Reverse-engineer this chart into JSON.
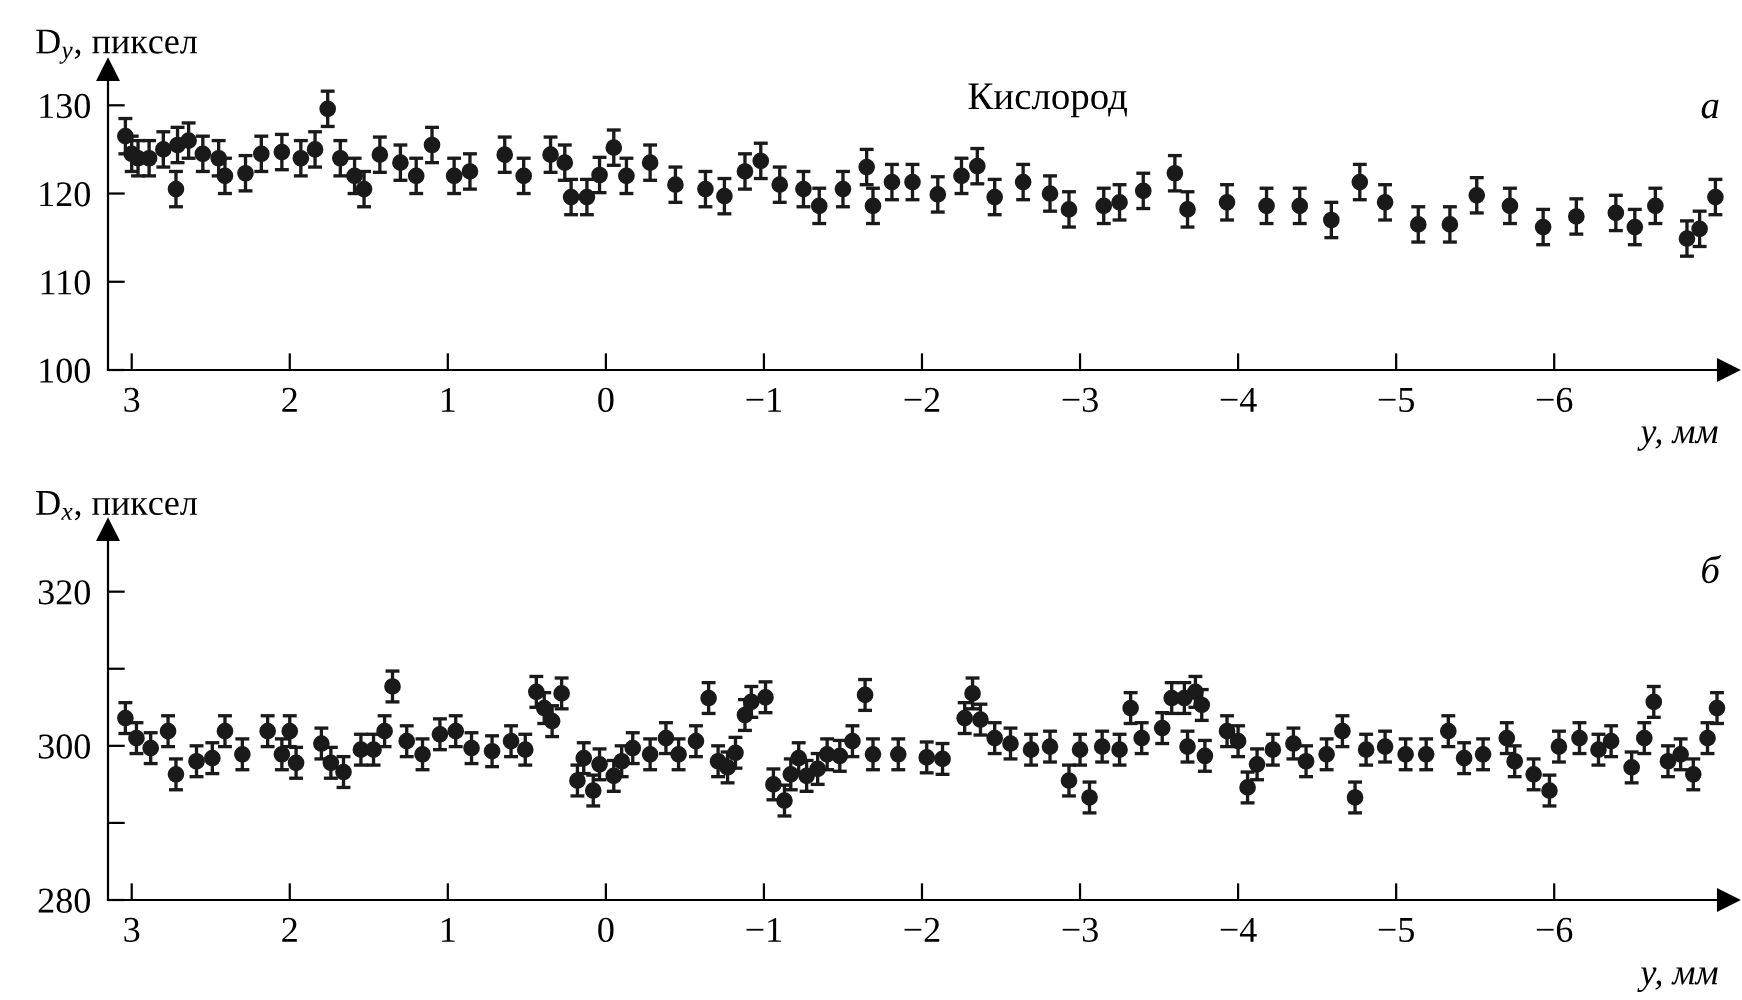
{
  "chart_data": [
    {
      "type": "scatter",
      "ylabel": "D$_{y}$, пиксел",
      "xlabel": "y, мм",
      "annotations": [
        "Кислород",
        "а"
      ],
      "marker": "circle",
      "grid": false,
      "xlim": [
        3.15,
        -7.1
      ],
      "ylim": [
        100,
        134
      ],
      "yticks": [
        100,
        110,
        120,
        130
      ],
      "xticks": [
        3,
        2,
        1,
        0,
        {
          "value": -1,
          "label": "−1"
        },
        {
          "value": -2,
          "label": "−2"
        },
        {
          "value": -3,
          "label": "−3"
        },
        {
          "value": -4,
          "label": "−4"
        },
        {
          "value": -5,
          "label": "−5"
        },
        {
          "value": -6,
          "label": "−6"
        }
      ],
      "series": [
        {
          "color": "#1a1a1a",
          "x": [
            3.04,
            3.0,
            2.96,
            2.89,
            2.8,
            2.71,
            2.72,
            2.64,
            2.55,
            2.45,
            2.41,
            2.28,
            2.18,
            2.05,
            1.93,
            1.84,
            1.76,
            1.68,
            1.59,
            1.53,
            1.43,
            1.3,
            1.2,
            1.1,
            0.96,
            0.86,
            0.64,
            0.52,
            0.35,
            0.26,
            0.22,
            0.12,
            0.04,
            -0.05,
            -0.13,
            -0.28,
            -0.44,
            -0.63,
            -0.75,
            -0.88,
            -0.98,
            -1.1,
            -1.25,
            -1.35,
            -1.5,
            -1.65,
            -1.69,
            -1.81,
            -1.94,
            -2.1,
            -2.25,
            -2.35,
            -2.46,
            -2.64,
            -2.81,
            -2.93,
            -3.15,
            -3.25,
            -3.4,
            -3.6,
            -3.68,
            -3.93,
            -4.18,
            -4.39,
            -4.59,
            -4.77,
            -4.93,
            -5.14,
            -5.34,
            -5.51,
            -5.72,
            -5.93,
            -6.14,
            -6.39,
            -6.51,
            -6.64,
            -6.84,
            -6.92,
            -7.02
          ],
          "values": [
            126.5,
            124.5,
            124,
            124,
            125,
            125.5,
            120.5,
            126,
            124.5,
            124,
            122,
            122.3,
            124.5,
            124.7,
            124,
            125,
            129.6,
            124,
            122,
            120.5,
            124.4,
            123.5,
            122,
            125.5,
            122,
            122.5,
            124.4,
            122,
            124.4,
            123.5,
            119.6,
            119.6,
            122.1,
            125.2,
            122,
            123.5,
            121,
            120.5,
            119.7,
            122.5,
            123.7,
            121,
            120.5,
            118.6,
            120.5,
            123,
            118.6,
            121.3,
            121.3,
            119.9,
            122,
            123.1,
            119.6,
            121.3,
            120,
            118.2,
            118.6,
            119,
            120.3,
            122.3,
            118.2,
            119,
            118.6,
            118.6,
            117,
            121.3,
            119,
            116.5,
            116.5,
            119.8,
            118.6,
            116.2,
            117.4,
            117.8,
            116.2,
            118.6,
            114.9,
            116,
            119.6
          ],
          "errors": [
            2,
            2,
            2,
            2,
            2,
            2,
            2,
            2,
            2,
            2,
            2,
            2,
            2,
            2,
            2,
            2,
            2,
            2,
            2,
            2,
            2,
            2,
            2,
            2,
            2,
            2,
            2,
            2,
            2,
            2,
            2,
            2,
            2,
            2,
            2,
            2,
            2,
            2,
            2,
            2,
            2,
            2,
            2,
            2,
            2,
            2,
            2,
            2,
            2,
            2,
            2,
            2,
            2,
            2,
            2,
            2,
            2,
            2,
            2,
            2,
            2,
            2,
            2,
            2,
            2,
            2,
            2,
            2,
            2,
            2,
            2,
            2,
            2,
            2,
            2,
            2,
            2,
            2,
            2
          ]
        }
      ]
    },
    {
      "type": "scatter",
      "ylabel": "D$_{x}$, пиксел",
      "xlabel": "y, мм",
      "annotations": [
        "б"
      ],
      "marker": "circle",
      "grid": false,
      "xlim": [
        3.15,
        -7.1
      ],
      "ylim": [
        280,
        328
      ],
      "yticks": [
        280,
        {
          "value": 290,
          "label": null
        },
        300,
        {
          "value": 310,
          "label": null
        },
        320
      ],
      "xticks": [
        3,
        2,
        1,
        0,
        {
          "value": -1,
          "label": "−1"
        },
        {
          "value": -2,
          "label": "−2"
        },
        {
          "value": -3,
          "label": "−3"
        },
        {
          "value": -4,
          "label": "−4"
        },
        {
          "value": -5,
          "label": "−5"
        },
        {
          "value": -6,
          "label": "−6"
        }
      ],
      "series": [
        {
          "color": "#1a1a1a",
          "x": [
            3.04,
            2.97,
            2.88,
            2.77,
            2.72,
            2.59,
            2.49,
            2.41,
            2.3,
            2.14,
            2.05,
            2.0,
            1.96,
            1.8,
            1.74,
            1.66,
            1.55,
            1.47,
            1.4,
            1.35,
            1.26,
            1.16,
            1.05,
            0.95,
            0.85,
            0.72,
            0.6,
            0.51,
            0.44,
            0.39,
            0.34,
            0.28,
            0.18,
            0.14,
            0.08,
            0.04,
            -0.05,
            -0.1,
            -0.17,
            -0.28,
            -0.38,
            -0.46,
            -0.57,
            -0.65,
            -0.71,
            -0.77,
            -0.82,
            -0.88,
            -0.92,
            -1.01,
            -1.06,
            -1.13,
            -1.17,
            -1.22,
            -1.27,
            -1.34,
            -1.4,
            -1.48,
            -1.56,
            -1.64,
            -1.69,
            -1.85,
            -2.03,
            -2.13,
            -2.27,
            -2.32,
            -2.37,
            -2.46,
            -2.56,
            -2.69,
            -2.81,
            -2.93,
            -3.0,
            -3.06,
            -3.14,
            -3.25,
            -3.32,
            -3.39,
            -3.52,
            -3.58,
            -3.66,
            -3.68,
            -3.73,
            -3.77,
            -3.79,
            -3.93,
            -4.0,
            -4.06,
            -4.12,
            -4.22,
            -4.35,
            -4.43,
            -4.56,
            -4.66,
            -4.74,
            -4.81,
            -4.93,
            -5.06,
            -5.19,
            -5.33,
            -5.43,
            -5.55,
            -5.7,
            -5.75,
            -5.87,
            -5.97,
            -6.03,
            -6.16,
            -6.28,
            -6.36,
            -6.49,
            -6.57,
            -6.63,
            -6.72,
            -6.8,
            -6.88,
            -6.97,
            -7.03
          ],
          "values": [
            303.6,
            301,
            299.7,
            301.9,
            296.3,
            298,
            298.4,
            301.9,
            298.9,
            301.9,
            298.9,
            301.9,
            297.8,
            300.3,
            297.8,
            296.6,
            299.5,
            299.5,
            301.9,
            307.7,
            300.6,
            298.9,
            301.5,
            301.9,
            299.7,
            299.3,
            300.6,
            299.5,
            307,
            304.9,
            303.2,
            306.8,
            295.5,
            298.4,
            294.2,
            297.6,
            296.1,
            298,
            299.7,
            298.9,
            301,
            298.9,
            300.6,
            306.2,
            298,
            297.2,
            299.1,
            304,
            305.7,
            306.3,
            295,
            292.9,
            296.3,
            298.4,
            296.1,
            297,
            298.9,
            298.7,
            300.6,
            306.6,
            298.9,
            298.9,
            298.5,
            298.3,
            303.6,
            306.8,
            303.4,
            301,
            300.3,
            299.5,
            299.9,
            295.5,
            299.5,
            293.3,
            299.9,
            299.5,
            304.9,
            301,
            302.3,
            306.2,
            306.2,
            299.9,
            307,
            305.3,
            298.7,
            301.9,
            300.6,
            294.6,
            297.6,
            299.5,
            300.3,
            298,
            298.9,
            301.9,
            293.3,
            299.5,
            299.9,
            298.9,
            298.9,
            301.9,
            298.4,
            298.9,
            301,
            298,
            296.3,
            294.2,
            299.9,
            301,
            299.5,
            300.6,
            297.2,
            301,
            305.7,
            298,
            298.9,
            296.3,
            301,
            304.9
          ],
          "errors": [
            2,
            2,
            2,
            2,
            2,
            2,
            2,
            2,
            2,
            2,
            2,
            2,
            2,
            2,
            2,
            2,
            2,
            2,
            2,
            2,
            2,
            2,
            2,
            2,
            2,
            2,
            2,
            2,
            2,
            2,
            2,
            2,
            2,
            2,
            2,
            2,
            2,
            2,
            2,
            2,
            2,
            2,
            2,
            2,
            2,
            2,
            2,
            2,
            2,
            2,
            2,
            2,
            2,
            2,
            2,
            2,
            2,
            2,
            2,
            2,
            2,
            2,
            2,
            2,
            2,
            2,
            2,
            2,
            2,
            2,
            2,
            2,
            2,
            2,
            2,
            2,
            2,
            2,
            2,
            2,
            2,
            2,
            2,
            2,
            2,
            2,
            2,
            2,
            2,
            2,
            2,
            2,
            2,
            2,
            2,
            2,
            2,
            2,
            2,
            2,
            2,
            2,
            2,
            2,
            2,
            2,
            2,
            2,
            2,
            2,
            2,
            2,
            2,
            2,
            2,
            2,
            2,
            2
          ]
        }
      ]
    }
  ]
}
